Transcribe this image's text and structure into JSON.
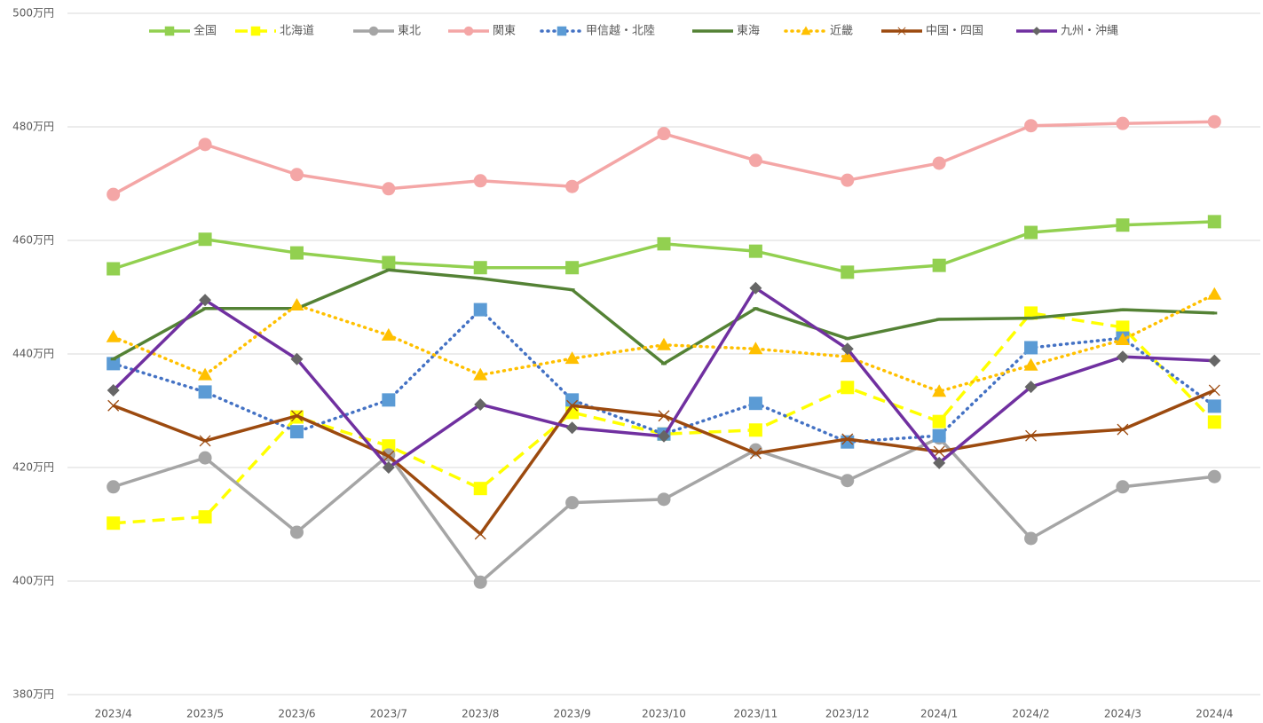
{
  "chart_data": {
    "type": "line",
    "categories": [
      "2023/4",
      "2023/5",
      "2023/6",
      "2023/7",
      "2023/8",
      "2023/9",
      "2023/10",
      "2023/11",
      "2023/12",
      "2024/1",
      "2024/2",
      "2024/3",
      "2024/4"
    ],
    "ylim": [
      380,
      500
    ],
    "yticks": [
      {
        "value": 380,
        "label": "380万円"
      },
      {
        "value": 400,
        "label": "400万円"
      },
      {
        "value": 420,
        "label": "420万円"
      },
      {
        "value": 440,
        "label": "440万円"
      },
      {
        "value": 460,
        "label": "460万円"
      },
      {
        "value": 480,
        "label": "480万円"
      },
      {
        "value": 500,
        "label": "500万円"
      }
    ],
    "grid": true,
    "legend": "top",
    "series": [
      {
        "name": "全国",
        "color": "#92d050",
        "marker": "square",
        "dash": "solid",
        "values": [
          455.0,
          460.2,
          457.8,
          456.1,
          455.2,
          455.2,
          459.4,
          458.1,
          454.4,
          455.6,
          461.4,
          462.7,
          463.3
        ]
      },
      {
        "name": "北海道",
        "color": "#ffff00",
        "marker": "square",
        "dash": "dashed",
        "values": [
          410.2,
          411.3,
          428.9,
          423.8,
          416.3,
          429.7,
          425.9,
          426.6,
          434.1,
          428.1,
          447.2,
          444.7,
          428.0
        ]
      },
      {
        "name": "東北",
        "color": "#a5a5a5",
        "marker": "circle",
        "dash": "solid",
        "values": [
          416.6,
          421.7,
          408.6,
          422.2,
          399.8,
          413.8,
          414.4,
          423.1,
          417.7,
          425.2,
          407.5,
          416.6,
          418.4
        ]
      },
      {
        "name": "関東",
        "color": "#f4a6a6",
        "marker": "circle",
        "dash": "solid",
        "values": [
          468.1,
          476.9,
          471.6,
          469.1,
          470.5,
          469.5,
          478.8,
          474.1,
          470.6,
          473.6,
          480.2,
          480.6,
          480.9
        ]
      },
      {
        "name": "甲信越・北陸",
        "color": "#4472c4",
        "marker_color": "#5b9bd5",
        "marker": "square",
        "dash": "dotted",
        "values": [
          438.3,
          433.3,
          426.3,
          431.9,
          447.8,
          431.9,
          425.9,
          431.3,
          424.5,
          425.6,
          441.1,
          442.8,
          430.8
        ]
      },
      {
        "name": "東海",
        "color": "#548235",
        "marker": "none",
        "dash": "solid",
        "values": [
          439.1,
          448.0,
          448.0,
          454.8,
          453.3,
          451.3,
          438.3,
          448.0,
          442.7,
          446.1,
          446.3,
          447.8,
          447.2
        ]
      },
      {
        "name": "近畿",
        "color": "#ffc000",
        "marker": "triangle",
        "dash": "dotted",
        "values": [
          443.0,
          436.3,
          448.6,
          443.3,
          436.3,
          439.2,
          441.6,
          440.9,
          439.5,
          433.4,
          438.0,
          442.5,
          450.5
        ]
      },
      {
        "name": "中国・四国",
        "color": "#9c4a0f",
        "marker": "x",
        "dash": "solid",
        "values": [
          430.9,
          424.7,
          429.1,
          422.0,
          408.3,
          430.9,
          429.1,
          422.5,
          425.0,
          422.8,
          425.6,
          426.7,
          433.6
        ]
      },
      {
        "name": "九州・沖縄",
        "color": "#7030a0",
        "marker_color": "#666666",
        "marker": "diamond",
        "dash": "solid",
        "values": [
          433.6,
          449.5,
          439.1,
          420.0,
          431.1,
          427.0,
          425.5,
          451.6,
          440.9,
          420.8,
          434.2,
          439.5,
          438.8
        ]
      }
    ]
  }
}
